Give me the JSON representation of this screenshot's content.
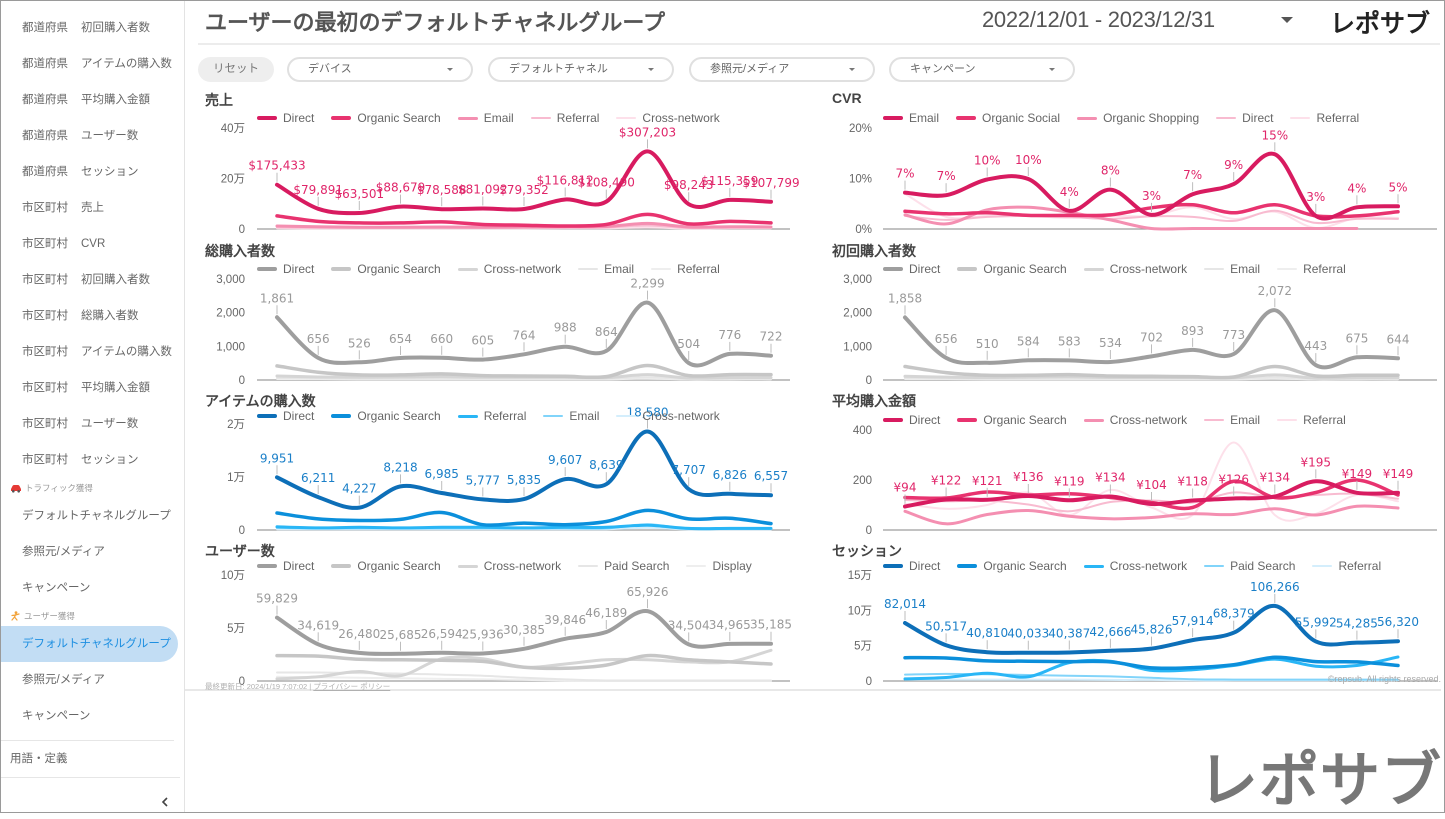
{
  "header": {
    "title": "ユーザーの最初のデフォルトチャネルグループ",
    "date_range": "2022/12/01 - 2023/12/31",
    "logo": "レポサブ"
  },
  "filters": {
    "reset": "リセット",
    "dropdowns": [
      "デバイス",
      "デフォルトチャネル",
      "参照元/メディア",
      "キャンペーン"
    ]
  },
  "sidebar": {
    "report_items": [
      {
        "region": "都道府県",
        "metric": "初回購入者数"
      },
      {
        "region": "都道府県",
        "metric": "アイテムの購入数"
      },
      {
        "region": "都道府県",
        "metric": "平均購入金額"
      },
      {
        "region": "都道府県",
        "metric": "ユーザー数"
      },
      {
        "region": "都道府県",
        "metric": "セッション"
      },
      {
        "region": "市区町村",
        "metric": "売上"
      },
      {
        "region": "市区町村",
        "metric": "CVR"
      },
      {
        "region": "市区町村",
        "metric": "初回購入者数"
      },
      {
        "region": "市区町村",
        "metric": "総購入者数"
      },
      {
        "region": "市区町村",
        "metric": "アイテムの購入数"
      },
      {
        "region": "市区町村",
        "metric": "平均購入金額"
      },
      {
        "region": "市区町村",
        "metric": "ユーザー数"
      },
      {
        "region": "市区町村",
        "metric": "セッション"
      }
    ],
    "traffic_section": {
      "label": "トラフィック獲得",
      "icon": "car-icon",
      "items": [
        "デフォルトチャネルグループ",
        "参照元/メディア",
        "キャンペーン"
      ]
    },
    "user_section": {
      "label": "ユーザー獲得",
      "icon": "person-icon",
      "items": [
        "デフォルトチャネルグループ",
        "参照元/メディア",
        "キャンペーン"
      ],
      "active_item": "デフォルトチャネルグループ"
    },
    "glossary": "用語・定義",
    "collapse_icon": "chevron-left-icon"
  },
  "footer": {
    "last_updated_label": "最終更新日:",
    "last_updated": "2024/1/19 7:07:02",
    "separator": "|",
    "privacy_link": "プライバシー ポリシー",
    "copyright": "©repsub. All rights reserved.",
    "brand_logo": "レポサブ"
  },
  "chart_data": [
    {
      "type": "line",
      "title": "売上",
      "ylim": [
        0,
        400000
      ],
      "yticks": [
        "0",
        "20万",
        "40万"
      ],
      "label_color": "#e0266a",
      "data_labels": [
        "$175,433",
        "$79,891",
        "$63,501",
        "$88,679",
        "$78,588",
        "$81,092",
        "$79,352",
        "$116,812",
        "$108,490",
        "$307,203",
        "$98,243",
        "$115,359",
        "$107,799"
      ],
      "series": [
        {
          "name": "Direct",
          "color": "#d81b60",
          "values": [
            175433,
            79891,
            63501,
            88679,
            78588,
            81092,
            79352,
            116812,
            108490,
            307203,
            98243,
            115359,
            107799
          ]
        },
        {
          "name": "Organic Search",
          "color": "#e8336f",
          "values": [
            52000,
            30000,
            24000,
            24000,
            28000,
            18000,
            15000,
            12000,
            18000,
            58000,
            20000,
            30000,
            24000
          ]
        },
        {
          "name": "Email",
          "color": "#f48fb1",
          "values": [
            12000,
            9000,
            7000,
            7000,
            8000,
            7000,
            8000,
            9000,
            10000,
            22000,
            8000,
            9000,
            8000
          ]
        },
        {
          "name": "Referral",
          "color": "#f8bbd0",
          "values": [
            6000,
            5000,
            4000,
            4000,
            4000,
            4000,
            5000,
            5000,
            6000,
            14000,
            4000,
            5000,
            5000
          ]
        },
        {
          "name": "Cross-network",
          "color": "#fde0ea",
          "values": [
            3000,
            2000,
            2000,
            2000,
            2000,
            2000,
            2000,
            3000,
            3000,
            6000,
            2000,
            3000,
            3000
          ]
        }
      ]
    },
    {
      "type": "line",
      "title": "CVR",
      "ylim": [
        0,
        20
      ],
      "yticks": [
        "0%",
        "10%",
        "20%"
      ],
      "label_color": "#e0266a",
      "data_labels": [
        "7%",
        "7%",
        "10%",
        "10%",
        "4%",
        "8%",
        "3%",
        "7%",
        "9%",
        "15%",
        "3%",
        "4%",
        "5%"
      ],
      "series": [
        {
          "name": "Email",
          "color": "#d81b60",
          "values": [
            7.2,
            6.7,
            9.8,
            9.9,
            3.6,
            7.8,
            2.8,
            6.9,
            8.9,
            14.8,
            2.6,
            4.3,
            4.5
          ]
        },
        {
          "name": "Organic Social",
          "color": "#e8336f",
          "values": [
            3.5,
            3.0,
            3.2,
            2.7,
            2.7,
            2.8,
            4.2,
            4.8,
            3.2,
            4.8,
            2.6,
            2.6,
            3.4
          ]
        },
        {
          "name": "Organic Shopping",
          "color": "#f48fb1",
          "values": [
            2.8,
            1.0,
            3.8,
            4.3,
            3.3,
            1.8,
            0.1,
            0.1,
            0.1,
            0.1,
            0.1,
            0.1,
            null
          ]
        },
        {
          "name": "Direct",
          "color": "#f8bbd0",
          "values": [
            2.6,
            1.8,
            2.4,
            2.6,
            2.4,
            2.0,
            2.5,
            2.4,
            1.6,
            3.6,
            1.2,
            2.0,
            2.0
          ]
        },
        {
          "name": "Referral",
          "color": "#fde0ea",
          "values": [
            7.0,
            2.4,
            2.6,
            2.6,
            2.2,
            2.6,
            2.6,
            4.3,
            2.0,
            3.4,
            0.2,
            2.2,
            2.2
          ]
        }
      ]
    },
    {
      "type": "line",
      "title": "総購入者数",
      "ylim": [
        0,
        3000
      ],
      "yticks": [
        "0",
        "1,000",
        "2,000",
        "3,000"
      ],
      "label_color": "#9a9a9a",
      "data_labels": [
        "1,861",
        "656",
        "526",
        "654",
        "660",
        "605",
        "764",
        "988",
        "864",
        "2,299",
        "504",
        "776",
        "722"
      ],
      "series": [
        {
          "name": "Direct",
          "color": "#9e9e9e",
          "values": [
            1861,
            656,
            526,
            654,
            660,
            605,
            764,
            988,
            864,
            2299,
            504,
            776,
            722
          ]
        },
        {
          "name": "Organic Search",
          "color": "#c6c6c6",
          "values": [
            420,
            230,
            150,
            150,
            180,
            130,
            120,
            110,
            100,
            430,
            130,
            160,
            160
          ]
        },
        {
          "name": "Cross-network",
          "color": "#d5d5d5",
          "values": [
            120,
            90,
            80,
            90,
            100,
            80,
            80,
            80,
            70,
            160,
            60,
            70,
            70
          ]
        },
        {
          "name": "Email",
          "color": "#e6e6e6",
          "values": [
            60,
            50,
            40,
            40,
            40,
            40,
            40,
            40,
            40,
            80,
            30,
            40,
            40
          ]
        },
        {
          "name": "Referral",
          "color": "#eeeeee",
          "values": [
            30,
            30,
            25,
            25,
            25,
            25,
            25,
            25,
            25,
            40,
            20,
            25,
            25
          ]
        }
      ]
    },
    {
      "type": "line",
      "title": "初回購入者数",
      "ylim": [
        0,
        3000
      ],
      "yticks": [
        "0",
        "1,000",
        "2,000",
        "3,000"
      ],
      "label_color": "#9a9a9a",
      "data_labels": [
        "1,858",
        "656",
        "510",
        "584",
        "583",
        "534",
        "702",
        "893",
        "773",
        "2,072",
        "443",
        "675",
        "644"
      ],
      "series": [
        {
          "name": "Direct",
          "color": "#9e9e9e",
          "values": [
            1858,
            656,
            510,
            584,
            583,
            534,
            702,
            893,
            773,
            2072,
            443,
            675,
            644
          ]
        },
        {
          "name": "Organic Search",
          "color": "#c6c6c6",
          "values": [
            400,
            220,
            140,
            140,
            160,
            120,
            110,
            100,
            90,
            400,
            120,
            140,
            140
          ]
        },
        {
          "name": "Cross-network",
          "color": "#d5d5d5",
          "values": [
            110,
            85,
            75,
            85,
            95,
            75,
            75,
            75,
            65,
            150,
            55,
            65,
            65
          ]
        },
        {
          "name": "Email",
          "color": "#e6e6e6",
          "values": [
            55,
            45,
            40,
            40,
            40,
            40,
            40,
            40,
            40,
            75,
            30,
            40,
            40
          ]
        },
        {
          "name": "Referral",
          "color": "#eeeeee",
          "values": [
            30,
            30,
            25,
            25,
            25,
            25,
            25,
            25,
            25,
            40,
            20,
            25,
            25
          ]
        }
      ]
    },
    {
      "type": "line",
      "title": "アイテムの購入数",
      "ylim": [
        0,
        20000
      ],
      "yticks": [
        "0",
        "1万",
        "2万"
      ],
      "label_color": "#1a7fc8",
      "data_labels": [
        "9,951",
        "6,211",
        "4,227",
        "8,218",
        "6,985",
        "5,777",
        "5,835",
        "9,607",
        "8,639",
        "18,580",
        "7,707",
        "6,826",
        "6,557"
      ],
      "series": [
        {
          "name": "Direct",
          "color": "#0d6fb8",
          "values": [
            9951,
            6211,
            4227,
            8218,
            6985,
            5777,
            5835,
            9607,
            8639,
            18580,
            7707,
            6826,
            6557
          ]
        },
        {
          "name": "Organic Search",
          "color": "#0b8fdb",
          "values": [
            3200,
            2100,
            1800,
            2000,
            3300,
            1000,
            1300,
            1000,
            1600,
            3700,
            2100,
            2200,
            1200
          ]
        },
        {
          "name": "Referral",
          "color": "#29b6f6",
          "values": [
            600,
            400,
            500,
            400,
            500,
            500,
            400,
            500,
            500,
            900,
            300,
            300,
            300
          ]
        },
        {
          "name": "Email",
          "color": "#81d4fa",
          "values": [
            400,
            300,
            300,
            300,
            300,
            300,
            300,
            300,
            300,
            1100,
            200,
            200,
            200
          ]
        },
        {
          "name": "Cross-network",
          "color": "#d4eefc",
          "values": [
            150,
            150,
            150,
            150,
            150,
            150,
            150,
            150,
            150,
            400,
            100,
            100,
            100
          ]
        }
      ]
    },
    {
      "type": "line",
      "title": "平均購入金額",
      "ylim": [
        0,
        400
      ],
      "yticks": [
        "0",
        "200",
        "400"
      ],
      "label_color": "#e0266a",
      "data_labels": [
        "¥94",
        "¥122",
        "¥121",
        "¥136",
        "¥119",
        "¥134",
        "¥104",
        "¥118",
        "¥126",
        "¥134",
        "¥195",
        "¥149",
        "¥149"
      ],
      "series": [
        {
          "name": "Direct",
          "color": "#d81b60",
          "values": [
            94,
            122,
            121,
            136,
            119,
            134,
            104,
            118,
            126,
            134,
            195,
            149,
            149
          ]
        },
        {
          "name": "Organic Search",
          "color": "#e8336f",
          "values": [
            130,
            128,
            152,
            140,
            145,
            130,
            110,
            90,
            195,
            130,
            150,
            200,
            140
          ]
        },
        {
          "name": "Cross-network",
          "color": "#f48fb1",
          "values": [
            75,
            25,
            62,
            78,
            55,
            45,
            50,
            65,
            62,
            85,
            60,
            95,
            88
          ]
        },
        {
          "name": "Email",
          "color": "#f8bbd0",
          "values": [
            120,
            115,
            118,
            102,
            75,
            112,
            118,
            110,
            150,
            132,
            140,
            145,
            125
          ]
        },
        {
          "name": "Referral",
          "color": "#fde0ea",
          "values": [
            105,
            85,
            100,
            150,
            60,
            160,
            90,
            60,
            350,
            60,
            65,
            140,
            115
          ]
        }
      ]
    },
    {
      "type": "line",
      "title": "ユーザー数",
      "ylim": [
        0,
        100000
      ],
      "yticks": [
        "0",
        "5万",
        "10万"
      ],
      "label_color": "#9a9a9a",
      "data_labels": [
        "59,829",
        "34,619",
        "26,480",
        "25,685",
        "26,594",
        "25,936",
        "30,385",
        "39,846",
        "46,189",
        "65,926",
        "34,504",
        "34,965",
        "35,185"
      ],
      "series": [
        {
          "name": "Direct",
          "color": "#9e9e9e",
          "values": [
            59829,
            34619,
            26480,
            25685,
            26594,
            25936,
            30385,
            39846,
            46189,
            65926,
            34504,
            34965,
            35185
          ]
        },
        {
          "name": "Organic Search",
          "color": "#c6c6c6",
          "values": [
            24000,
            23500,
            20500,
            20000,
            19500,
            18500,
            13000,
            12000,
            15000,
            24000,
            20000,
            18000,
            16000
          ]
        },
        {
          "name": "Cross-network",
          "color": "#d5d5d5",
          "values": [
            2000,
            4000,
            9000,
            5000,
            21000,
            21000,
            13000,
            16000,
            20000,
            20000,
            18000,
            18000,
            29000
          ]
        },
        {
          "name": "Paid Search",
          "color": "#e6e6e6",
          "values": [
            8000,
            8000,
            7500,
            7000,
            6000,
            5000,
            3000,
            1500,
            500,
            500,
            500,
            500,
            500
          ]
        },
        {
          "name": "Display",
          "color": "#eeeeee",
          "values": [
            4000,
            3500,
            3000,
            2500,
            2000,
            1500,
            1000,
            500,
            300,
            300,
            300,
            300,
            300
          ]
        }
      ]
    },
    {
      "type": "line",
      "title": "セッション",
      "ylim": [
        0,
        150000
      ],
      "yticks": [
        "0",
        "5万",
        "10万",
        "15万"
      ],
      "label_color": "#1a7fc8",
      "data_labels": [
        "82,014",
        "50,517",
        "40,810",
        "40,033",
        "40,387",
        "42,666",
        "45,826",
        "57,914",
        "68,379",
        "106,266",
        "55,992",
        "54,285",
        "56,320"
      ],
      "series": [
        {
          "name": "Direct",
          "color": "#0d6fb8",
          "values": [
            82014,
            50517,
            40810,
            40033,
            40387,
            42666,
            45826,
            57914,
            68379,
            106266,
            55992,
            54285,
            56320
          ]
        },
        {
          "name": "Organic Search",
          "color": "#0b8fdb",
          "values": [
            33000,
            32500,
            28500,
            28000,
            27500,
            27000,
            18500,
            19000,
            23000,
            33500,
            27500,
            27000,
            22000
          ]
        },
        {
          "name": "Cross-network",
          "color": "#29b6f6",
          "values": [
            3000,
            5000,
            11000,
            6000,
            26000,
            28000,
            15000,
            16000,
            22000,
            31000,
            21000,
            22000,
            34000
          ]
        },
        {
          "name": "Paid Search",
          "color": "#81d4fa",
          "values": [
            9000,
            10000,
            9500,
            8500,
            7500,
            6500,
            4500,
            2500,
            2000,
            2000,
            2000,
            2000,
            2000
          ]
        },
        {
          "name": "Referral",
          "color": "#d4eefc",
          "values": [
            2000,
            2000,
            2000,
            2000,
            2000,
            1500,
            1500,
            1000,
            1000,
            1000,
            1000,
            1000,
            1000
          ]
        }
      ]
    }
  ]
}
